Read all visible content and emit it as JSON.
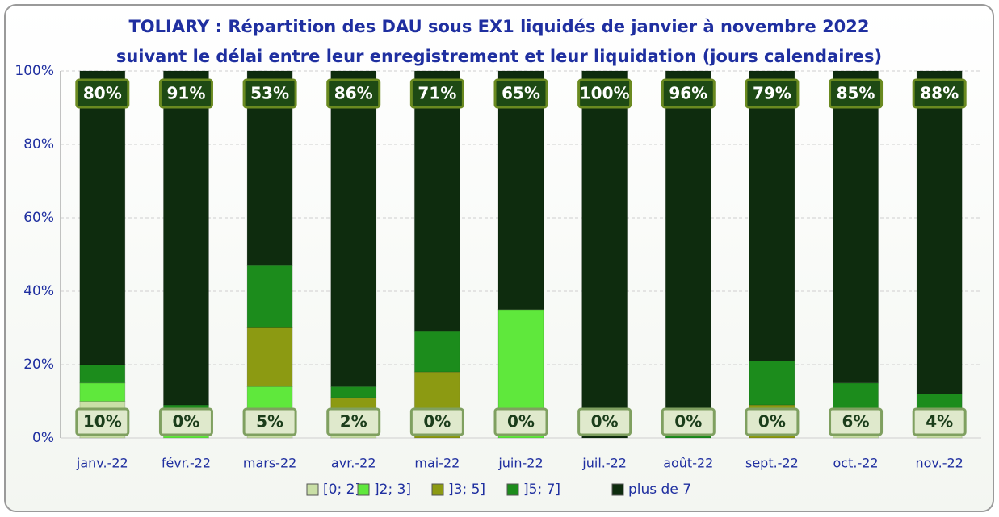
{
  "chart_data": {
    "type": "stacked_bar",
    "title": "TOLIARY : Répartition des DAU sous EX1 liquidés de janvier à novembre 2022",
    "subtitle": "suivant le délai entre leur enregistrement et leur liquidation (jours calendaires)",
    "categories": [
      "janv.-22",
      "févr.-22",
      "mars-22",
      "avr.-22",
      "mai-22",
      "juin-22",
      "juil.-22",
      "août-22",
      "sept.-22",
      "oct.-22",
      "nov.-22"
    ],
    "series": [
      {
        "name": "[0; 2]",
        "color": "#c9dfa6",
        "values": [
          10,
          0,
          5,
          2,
          0,
          0,
          0,
          0,
          0,
          6,
          4
        ],
        "value_labels": [
          "10%",
          "0%",
          "5%",
          "2%",
          "0%",
          "0%",
          "0%",
          "0%",
          "0%",
          "6%",
          "4%"
        ]
      },
      {
        "name": "]2; 3]",
        "color": "#5fe83c",
        "values": [
          5,
          2,
          9,
          4,
          0,
          35,
          0,
          0,
          0,
          0,
          4
        ]
      },
      {
        "name": "]3; 5]",
        "color": "#8c9a12",
        "values": [
          0,
          3,
          16,
          5,
          18,
          0,
          0,
          0,
          9,
          0,
          0
        ]
      },
      {
        "name": "]5; 7]",
        "color": "#1c8c1c",
        "values": [
          5,
          4,
          17,
          3,
          11,
          0,
          0,
          4,
          12,
          9,
          4
        ]
      },
      {
        "name": "plus de 7",
        "color": "#0e2c0e",
        "values": [
          80,
          91,
          53,
          86,
          71,
          65,
          100,
          96,
          79,
          85,
          88
        ],
        "value_labels": [
          "80%",
          "91%",
          "53%",
          "86%",
          "71%",
          "65%",
          "100%",
          "96%",
          "79%",
          "85%",
          "88%"
        ]
      }
    ],
    "ylim": [
      0,
      100
    ],
    "yticks": [
      {
        "value": 0,
        "label": "0%"
      },
      {
        "value": 20,
        "label": "20%"
      },
      {
        "value": 40,
        "label": "40%"
      },
      {
        "value": 60,
        "label": "60%"
      },
      {
        "value": 80,
        "label": "80%"
      },
      {
        "value": 100,
        "label": "100%"
      }
    ],
    "grid": true,
    "legend": "bottom"
  }
}
